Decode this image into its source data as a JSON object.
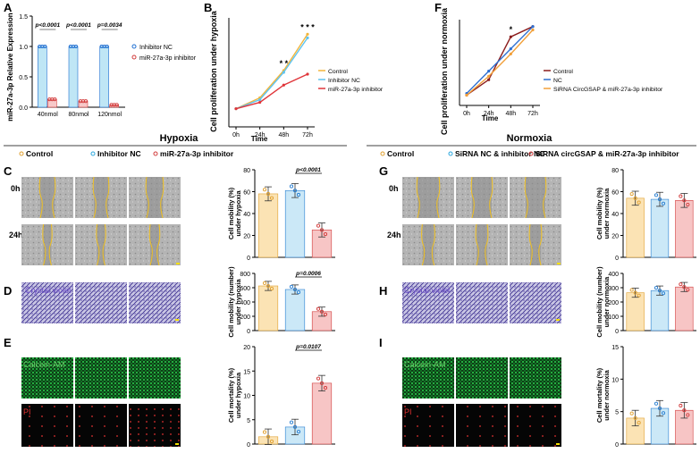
{
  "panels": {
    "A": {
      "letter": "A",
      "chart_data": {
        "type": "bar",
        "ylabel": "miR-27a-3p Relative Expression",
        "categories": [
          "40nmol",
          "80nmol",
          "120nmol"
        ],
        "series": [
          {
            "name": "Inhibitor NC",
            "values": [
              1.0,
              1.0,
              1.0
            ],
            "color": "#bfe6f5",
            "dot": "#1f6fd1"
          },
          {
            "name": "miR-27a-3p inhibitor",
            "values": [
              0.13,
              0.1,
              0.04
            ],
            "color": "#f7c9c9",
            "dot": "#d23c3c"
          }
        ],
        "ylim": [
          0,
          1.5
        ],
        "yticks": [
          "0.0",
          "0.5",
          "1.0",
          "1.5"
        ],
        "pvalues": [
          "p<0.0001",
          "p<0.0001",
          "p=0.0034"
        ]
      }
    },
    "B": {
      "letter": "B",
      "chart_data": {
        "type": "line",
        "title": "",
        "ylabel": "Cell proliferation under hypoxia",
        "xlabel": "Time",
        "x": [
          "0h",
          "24h",
          "48h",
          "72h"
        ],
        "series": [
          {
            "name": "Control",
            "values": [
              0.2,
              0.32,
              0.62,
              1.02
            ],
            "color": "#f2b53a"
          },
          {
            "name": "Inhibitor NC",
            "values": [
              0.2,
              0.3,
              0.6,
              0.98
            ],
            "color": "#5ec3ef"
          },
          {
            "name": "miR-27a-3p inhibitor",
            "values": [
              0.2,
              0.27,
              0.46,
              0.58
            ],
            "color": "#e0353a"
          }
        ],
        "ylim": [
          0,
          1.2
        ],
        "significance": [
          {
            "at": "48h",
            "mark": "* *"
          },
          {
            "at": "72h",
            "mark": "* * *"
          }
        ]
      }
    },
    "F": {
      "letter": "F",
      "chart_data": {
        "type": "line",
        "ylabel": "Cell proliferation under normoxia",
        "xlabel": "Time",
        "x": [
          "0h",
          "24h",
          "48h",
          "72h"
        ],
        "series": [
          {
            "name": "Control",
            "values": [
              0.06,
              0.15,
              0.4,
              0.46
            ],
            "color": "#8b1c1c"
          },
          {
            "name": "NC",
            "values": [
              0.07,
              0.2,
              0.33,
              0.46
            ],
            "color": "#2d6fd1"
          },
          {
            "name": "SiRNA CircGSAP & miR-27a-3p inhibitor",
            "values": [
              0.06,
              0.17,
              0.3,
              0.44
            ],
            "color": "#f2a03a"
          }
        ],
        "ylim": [
          0,
          0.5
        ],
        "significance": [
          {
            "at": "48h",
            "mark": "*"
          }
        ]
      }
    },
    "left": {
      "header": "Hypoxia",
      "legend": [
        "Control",
        "Inhibitor NC",
        "miR-27a-3p inhibitor"
      ],
      "legend_colors": [
        "#e0a030",
        "#2aa7dd",
        "#d23c3c"
      ],
      "C": {
        "letter": "C",
        "rows": [
          "0h",
          "24h"
        ],
        "chart_data": {
          "type": "bar",
          "ylabel": "Cell mobility (%) under hypoxia",
          "categories": [
            "Control",
            "Inhibitor NC",
            "miR-27a-3p inhibitor"
          ],
          "values": [
            58,
            61,
            25
          ],
          "ylim": [
            0,
            80
          ],
          "yticks": [
            "0",
            "20",
            "40",
            "60",
            "80"
          ],
          "pvalue": "p<0.0001"
        }
      },
      "D": {
        "letter": "D",
        "image_label": "Crystal violet",
        "chart_data": {
          "type": "bar",
          "ylabel": "Cell mobility (number) under hypoxia",
          "categories": [
            "Control",
            "Inhibitor NC",
            "miR-27a-3p inhibitor"
          ],
          "values": [
            625,
            575,
            265
          ],
          "ylim": [
            0,
            800
          ],
          "yticks": [
            "0",
            "200",
            "400",
            "600",
            "800"
          ],
          "pvalue": "p=0.0006"
        }
      },
      "E": {
        "letter": "E",
        "image_labels": [
          "Calcein-AM",
          "PI"
        ],
        "chart_data": {
          "type": "bar",
          "ylabel": "Cell mortality (%) under hypoxia",
          "categories": [
            "Control",
            "Inhibitor NC",
            "miR-27a-3p inhibitor"
          ],
          "values": [
            1.5,
            3.5,
            12.5
          ],
          "ylim": [
            0,
            20
          ],
          "yticks": [
            "0",
            "5",
            "10",
            "15",
            "20"
          ],
          "pvalue": "p=0.0107"
        }
      }
    },
    "right": {
      "header": "Normoxia",
      "legend": [
        "Control",
        "SiRNA NC & inhibitor NC",
        "SiRNA circGSAP & miR-27a-3p inhibitor"
      ],
      "legend_colors": [
        "#e0a030",
        "#2aa7dd",
        "#d23c3c"
      ],
      "G": {
        "letter": "G",
        "rows": [
          "0h",
          "24h"
        ],
        "chart_data": {
          "type": "bar",
          "ylabel": "Cell mobility (%) under normoxia",
          "categories": [
            "Control",
            "SiRNA NC & inhibitor NC",
            "SiRNA circGSAP & miR-27a-3p inhibitor"
          ],
          "values": [
            54,
            53,
            52
          ],
          "ylim": [
            0,
            80
          ],
          "yticks": [
            "0",
            "20",
            "40",
            "60",
            "80"
          ]
        }
      },
      "H": {
        "letter": "H",
        "image_label": "Crystal violet",
        "chart_data": {
          "type": "bar",
          "ylabel": "Cell mobility (number) under normoxia",
          "categories": [
            "Control",
            "SiRNA NC & inhibitor NC",
            "SiRNA circGSAP & miR-27a-3p inhibitor"
          ],
          "values": [
            265,
            280,
            305
          ],
          "ylim": [
            0,
            400
          ],
          "yticks": [
            "0",
            "100",
            "200",
            "300",
            "400"
          ]
        }
      },
      "I": {
        "letter": "I",
        "image_labels": [
          "Calcein-AM",
          "PI"
        ],
        "chart_data": {
          "type": "bar",
          "ylabel": "Cell mortality (%) under normoxia",
          "categories": [
            "Control",
            "SiRNA NC & inhibitor NC",
            "SiRNA circGSAP & miR-27a-3p inhibitor"
          ],
          "values": [
            4,
            5.5,
            5.2
          ],
          "ylim": [
            0,
            15
          ],
          "yticks": [
            "0",
            "5",
            "10",
            "15"
          ]
        }
      }
    }
  },
  "colors": {
    "bar_fill": [
      "#fbe3b4",
      "#cbe8f7",
      "#f7c5c5"
    ],
    "bar_dot": [
      "#e0a030",
      "#2a7fd1",
      "#d23c3c"
    ],
    "scratch_bg": "#b8b8b8",
    "scratch_line": "#f0c020",
    "crystal_bg": "#c9c6e4",
    "crystal_fg": "#3b2f8f",
    "calcein": "#22c84a",
    "pi": "#e03030"
  }
}
